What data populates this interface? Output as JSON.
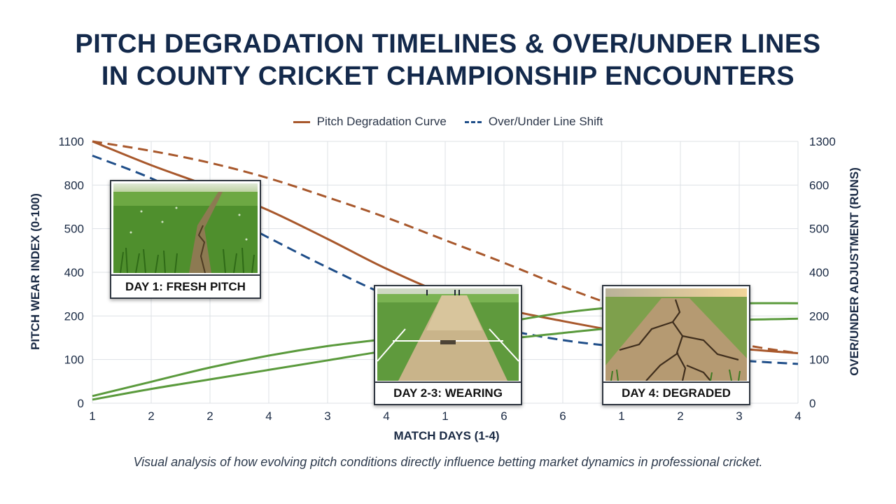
{
  "title_line1": "PITCH DEGRADATION TIMELINES & OVER/UNDER LINES",
  "title_line2": "IN COUNTY CRICKET CHAMPIONSHIP ENCOUNTERS",
  "caption": "Visual analysis of how evolving pitch conditions directly influence betting market dynamics in professional cricket.",
  "colors": {
    "pitch": "#a8582c",
    "overunder": "#1f4e89",
    "green": "#5a9a3c",
    "grid": "#dde1e6",
    "text": "#1a2a44"
  },
  "photos": [
    {
      "label": "DAY 1: FRESH PITCH",
      "icon": "fresh-grass-pitch-photo"
    },
    {
      "label": "DAY 2-3: WEARING",
      "icon": "wearing-pitch-photo"
    },
    {
      "label": "DAY 4: DEGRADED",
      "icon": "cracked-pitch-photo"
    }
  ],
  "chart_data": {
    "type": "line",
    "xlabel": "MATCH DAYS (1-4)",
    "ylabel_left": "PITCH WEAR INDEX (0-100)",
    "ylabel_right": "OVER/UNDER ADJUSTMENT (RUNS)",
    "x_ticks": [
      "1",
      "2",
      "2",
      "4",
      "3",
      "4",
      "1",
      "6",
      "6",
      "1",
      "2",
      "3",
      "4"
    ],
    "y_ticks_left": [
      "0",
      "100",
      "200",
      "400",
      "500",
      "800",
      "1100"
    ],
    "y_ticks_right": [
      "0",
      "100",
      "200",
      "400",
      "500",
      "600",
      "1300"
    ],
    "grid": true,
    "legend_position": "top-center",
    "legend": [
      "Pitch Degradation Curve",
      "Over/Under Line Shift"
    ],
    "series": [
      {
        "name": "Pitch Degradation Curve",
        "color": "#a8582c",
        "style": "solid",
        "values": [
          1100,
          1000,
          910,
          810,
          690,
          565,
          460,
          395,
          345,
          300,
          265,
          230,
          210
        ]
      },
      {
        "name": "",
        "color": "#a8582c",
        "style": "dashed",
        "values": [
          1100,
          1060,
          1010,
          945,
          865,
          780,
          685,
          590,
          490,
          400,
          320,
          250,
          210
        ]
      },
      {
        "name": "Over/Under Line Shift",
        "color": "#1f4e89",
        "style": "dashed",
        "values": [
          1040,
          945,
          825,
          695,
          570,
          455,
          370,
          310,
          265,
          235,
          205,
          180,
          165
        ]
      },
      {
        "name": "",
        "color": "#5a9a3c",
        "style": "solid",
        "values": [
          30,
          90,
          150,
          200,
          240,
          270,
          300,
          340,
          380,
          405,
          415,
          420,
          420
        ]
      },
      {
        "name": "",
        "color": "#5a9a3c",
        "style": "solid",
        "values": [
          15,
          60,
          100,
          140,
          180,
          220,
          250,
          270,
          295,
          320,
          340,
          350,
          355
        ]
      }
    ]
  }
}
